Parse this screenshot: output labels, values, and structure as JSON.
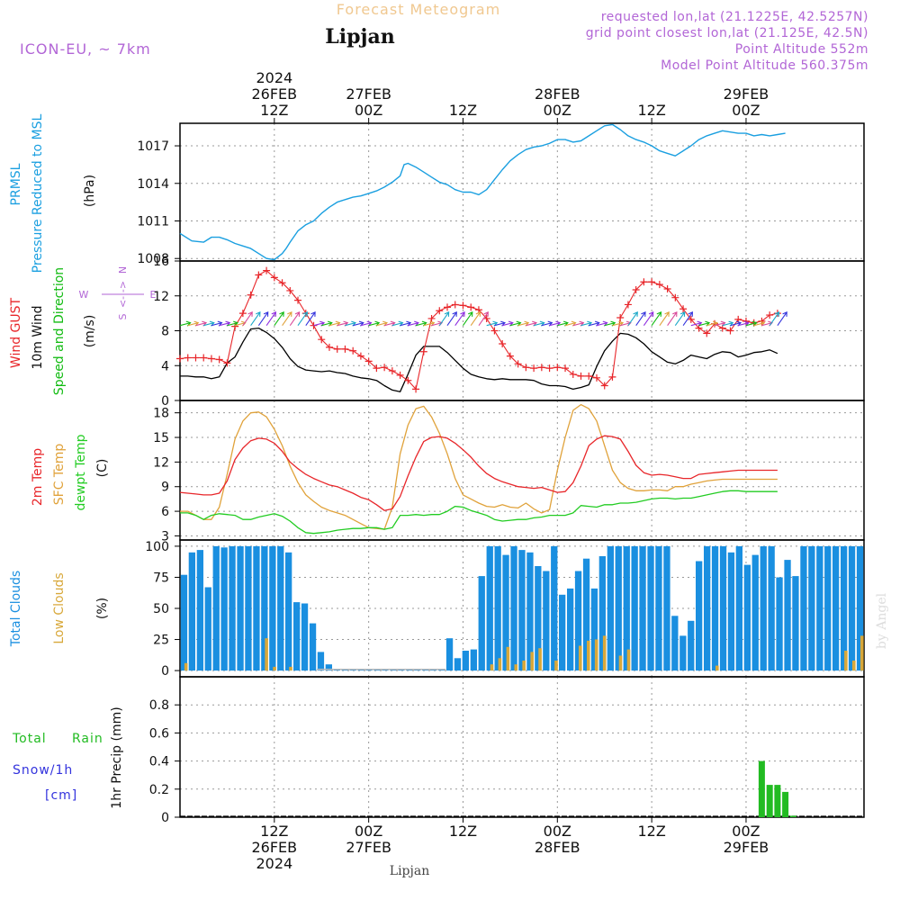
{
  "header": {
    "subtitle": "Forecast Meteogram",
    "location": "Lipjan",
    "model": "ICON-EU, ~ 7km",
    "requested": "requested lon,lat (21.1225E, 42.5257N)",
    "grid_point": "grid point closest lon,lat (21.125E, 42.5N)",
    "point_altitude": "Point Altitude 552m",
    "model_altitude": "Model Point Altitude 560.375m"
  },
  "footer": {
    "location": "Lipjan",
    "watermark": "by Angel"
  },
  "colors": {
    "pressure": "#1a9fe0",
    "gust": "#e8262a",
    "wind10m": "#000000",
    "winddir": "#11bb11",
    "t2m": "#e8262a",
    "tsfc": "#e0a23a",
    "dewpt": "#22cc22",
    "total_clouds": "#1a8fe0",
    "low_clouds": "#d8a83a",
    "rain": "#22bb22",
    "snow": "#3333dd",
    "accent": "#b266d6",
    "subtitle": "#f0c890"
  },
  "axis_labels": {
    "pressure": [
      "PRMSL",
      "Pressure Reduced to MSL",
      "(hPa)"
    ],
    "wind": [
      "Wind GUST",
      "10m Wind",
      "Speed and Direction",
      "(m/s)"
    ],
    "wind_compass": [
      "N",
      "<-|->",
      "S",
      "W",
      "E"
    ],
    "temp": [
      "2m Temp",
      "SFC Temp",
      "dewpt Temp",
      "(C)"
    ],
    "clouds": [
      "Total Clouds",
      "Low Clouds",
      "(%)"
    ],
    "precip": [
      "Total",
      "Rain",
      "Snow/1h",
      "[cm]",
      "1hr Precip (mm)"
    ]
  },
  "chart_data": {
    "type": "meteogram",
    "time_axis": {
      "hours": [
        0,
        87
      ],
      "top_labels": [
        {
          "hour": 12,
          "time": "12Z",
          "date": "26FEB",
          "year": "2024"
        },
        {
          "hour": 24,
          "time": "00Z",
          "date": "27FEB",
          "year": ""
        },
        {
          "hour": 36,
          "time": "12Z",
          "date": "",
          "year": ""
        },
        {
          "hour": 48,
          "time": "00Z",
          "date": "28FEB",
          "year": ""
        },
        {
          "hour": 60,
          "time": "12Z",
          "date": "",
          "year": ""
        },
        {
          "hour": 72,
          "time": "00Z",
          "date": "29FEB",
          "year": ""
        }
      ],
      "bottom_labels": [
        {
          "hour": 12,
          "time": "12Z",
          "date": "26FEB",
          "year": "2024"
        },
        {
          "hour": 24,
          "time": "00Z",
          "date": "27FEB",
          "year": ""
        },
        {
          "hour": 36,
          "time": "12Z",
          "date": "",
          "year": ""
        },
        {
          "hour": 48,
          "time": "00Z",
          "date": "28FEB",
          "year": ""
        },
        {
          "hour": 60,
          "time": "12Z",
          "date": "",
          "year": ""
        },
        {
          "hour": 72,
          "time": "00Z",
          "date": "29FEB",
          "year": ""
        }
      ]
    },
    "pressure": {
      "name": "PRMSL",
      "unit": "hPa",
      "ylim": [
        1007.8,
        1018.8
      ],
      "ticks": [
        1008,
        1011,
        1014,
        1017
      ],
      "x": [
        0,
        1.5,
        3,
        4,
        5,
        6,
        7,
        8,
        9,
        10,
        11,
        12,
        13,
        13.5,
        14,
        15,
        16,
        17,
        18,
        19,
        20,
        21,
        22,
        23,
        24,
        25,
        26,
        27,
        28,
        28.5,
        29,
        30,
        31,
        32,
        33,
        34,
        35,
        36,
        37,
        38,
        39,
        40,
        41,
        42,
        43,
        44,
        45,
        46,
        47,
        48,
        49,
        50,
        51,
        52,
        53,
        54,
        55,
        56,
        57,
        58,
        59,
        60,
        61,
        62,
        63,
        64,
        65,
        66,
        67,
        68,
        69,
        70,
        71,
        72,
        73,
        74,
        75,
        76,
        77
      ],
      "values": [
        1010,
        1009.4,
        1009.3,
        1009.7,
        1009.7,
        1009.5,
        1009.2,
        1009.0,
        1008.8,
        1008.4,
        1008.0,
        1007.9,
        1008.4,
        1008.8,
        1009.3,
        1010.2,
        1010.7,
        1011.0,
        1011.6,
        1012.1,
        1012.5,
        1012.7,
        1012.9,
        1013.0,
        1013.2,
        1013.4,
        1013.7,
        1014.1,
        1014.6,
        1015.5,
        1015.6,
        1015.3,
        1014.9,
        1014.5,
        1014.1,
        1013.9,
        1013.5,
        1013.3,
        1013.3,
        1013.1,
        1013.5,
        1014.3,
        1015.1,
        1015.8,
        1016.3,
        1016.7,
        1016.9,
        1017.0,
        1017.2,
        1017.5,
        1017.5,
        1017.3,
        1017.4,
        1017.8,
        1018.2,
        1018.6,
        1018.7,
        1018.3,
        1017.8,
        1017.5,
        1017.3,
        1017.0,
        1016.6,
        1016.4,
        1016.2,
        1016.6,
        1017.0,
        1017.5,
        1017.8,
        1018.0,
        1018.2,
        1018.1,
        1018.0,
        1018.0,
        1017.8,
        1017.9,
        1017.8,
        1017.9,
        1018.0
      ]
    },
    "wind": {
      "unit": "m/s",
      "ylim": [
        0,
        16
      ],
      "ticks": [
        0,
        4,
        8,
        12,
        16
      ],
      "x": [
        0,
        1,
        2,
        3,
        4,
        5,
        6,
        7,
        8,
        9,
        10,
        11,
        12,
        13,
        14,
        15,
        16,
        17,
        18,
        19,
        20,
        21,
        22,
        23,
        24,
        25,
        26,
        27,
        28,
        29,
        30,
        31,
        32,
        33,
        34,
        35,
        36,
        37,
        38,
        39,
        40,
        41,
        42,
        43,
        44,
        45,
        46,
        47,
        48,
        49,
        50,
        51,
        52,
        53,
        54,
        55,
        56,
        57,
        58,
        59,
        60,
        61,
        62,
        63,
        64,
        65,
        66,
        67,
        68,
        69,
        70,
        71,
        72,
        73,
        74,
        75,
        76
      ],
      "gust": [
        4.8,
        4.9,
        4.9,
        4.9,
        4.8,
        4.7,
        4.3,
        8.5,
        10.0,
        12.1,
        14.4,
        14.9,
        14.1,
        13.5,
        12.6,
        11.5,
        10.0,
        8.6,
        7.0,
        6.1,
        5.9,
        5.9,
        5.7,
        5.1,
        4.5,
        3.7,
        3.8,
        3.4,
        2.9,
        2.3,
        1.3,
        5.6,
        9.4,
        10.3,
        10.7,
        11.0,
        10.9,
        10.7,
        10.4,
        9.4,
        8.0,
        6.5,
        5.1,
        4.2,
        3.8,
        3.7,
        3.8,
        3.7,
        3.8,
        3.7,
        3.0,
        2.8,
        2.8,
        2.6,
        1.7,
        2.7,
        9.5,
        11.0,
        12.7,
        13.6,
        13.6,
        13.3,
        12.8,
        11.8,
        10.5,
        9.3,
        8.3,
        7.7,
        8.8,
        8.3,
        8.0,
        9.3,
        9.1,
        8.9,
        9.1,
        9.8,
        10.0
      ],
      "wind10m": [
        2.8,
        2.8,
        2.7,
        2.7,
        2.5,
        2.7,
        4.3,
        5.0,
        6.7,
        8.2,
        8.3,
        7.8,
        7.1,
        6.1,
        4.8,
        3.9,
        3.5,
        3.4,
        3.3,
        3.4,
        3.2,
        3.1,
        2.8,
        2.6,
        2.5,
        2.3,
        1.7,
        1.2,
        1.0,
        3.0,
        5.2,
        6.2,
        6.2,
        6.2,
        5.5,
        4.6,
        3.7,
        3.0,
        2.7,
        2.5,
        2.4,
        2.5,
        2.4,
        2.4,
        2.4,
        2.3,
        1.9,
        1.7,
        1.7,
        1.6,
        1.3,
        1.5,
        1.8,
        3.9,
        5.7,
        6.8,
        7.7,
        7.6,
        7.2,
        6.5,
        5.6,
        5.0,
        4.4,
        4.2,
        4.6,
        5.2,
        5.0,
        4.8,
        5.3,
        5.6,
        5.5,
        5.0,
        5.2,
        5.5,
        5.6,
        5.8,
        5.4
      ]
    },
    "temperature": {
      "unit": "C",
      "ylim": [
        2.5,
        19.5
      ],
      "ticks": [
        3,
        6,
        9,
        12,
        15,
        18
      ],
      "x": [
        0,
        1,
        2,
        3,
        4,
        5,
        6,
        7,
        8,
        9,
        10,
        11,
        12,
        13,
        14,
        15,
        16,
        17,
        18,
        19,
        20,
        21,
        22,
        23,
        24,
        25,
        26,
        27,
        28,
        29,
        30,
        31,
        32,
        33,
        34,
        35,
        36,
        37,
        38,
        39,
        40,
        41,
        42,
        43,
        44,
        45,
        46,
        47,
        48,
        49,
        50,
        51,
        52,
        53,
        54,
        55,
        56,
        57,
        58,
        59,
        60,
        61,
        62,
        63,
        64,
        65,
        66,
        67,
        68,
        69,
        70,
        71,
        72,
        73,
        74,
        75,
        76
      ],
      "t2m": [
        8.3,
        8.2,
        8.1,
        8.0,
        8.0,
        8.2,
        9.7,
        12.3,
        13.7,
        14.6,
        14.9,
        14.8,
        14.3,
        13.3,
        12.0,
        11.2,
        10.5,
        10.0,
        9.6,
        9.2,
        9.0,
        8.6,
        8.2,
        7.7,
        7.4,
        6.8,
        6.1,
        6.3,
        7.8,
        10.3,
        12.6,
        14.5,
        15.0,
        15.1,
        14.9,
        14.3,
        13.5,
        12.6,
        11.5,
        10.6,
        10.0,
        9.6,
        9.3,
        9.0,
        8.9,
        8.8,
        8.9,
        8.6,
        8.3,
        8.4,
        9.5,
        11.5,
        14.0,
        14.8,
        15.2,
        15.1,
        14.8,
        13.3,
        11.6,
        10.7,
        10.4,
        10.5,
        10.4,
        10.2,
        10.0,
        10.0,
        10.5,
        10.6,
        10.7,
        10.8,
        10.9,
        11.0,
        11.0,
        11.0,
        11.0,
        11.0,
        11.0
      ],
      "tsfc": [
        6.0,
        6.0,
        5.5,
        5.0,
        5.0,
        6.5,
        10.5,
        14.8,
        17.0,
        18.0,
        18.1,
        17.5,
        16.0,
        14.0,
        11.5,
        9.5,
        8.0,
        7.2,
        6.5,
        6.1,
        5.8,
        5.5,
        5.0,
        4.5,
        4.0,
        3.9,
        3.8,
        6.5,
        13.0,
        16.5,
        18.5,
        18.8,
        17.5,
        15.5,
        13.0,
        10.0,
        8.0,
        7.5,
        7.0,
        6.6,
        6.5,
        6.8,
        6.5,
        6.4,
        7.0,
        6.3,
        5.8,
        6.2,
        11.0,
        15.0,
        18.3,
        19.0,
        18.5,
        17.0,
        14.0,
        11.0,
        9.5,
        8.8,
        8.5,
        8.5,
        8.6,
        8.6,
        8.5,
        9.0,
        9.0,
        9.3,
        9.5,
        9.7,
        9.8,
        9.9,
        9.9,
        9.9,
        9.9,
        9.9,
        9.9,
        9.9,
        9.9
      ],
      "dewpt": [
        5.8,
        5.8,
        5.5,
        5.0,
        5.5,
        5.7,
        5.6,
        5.5,
        5.0,
        5.0,
        5.3,
        5.5,
        5.7,
        5.4,
        4.8,
        4.0,
        3.4,
        3.3,
        3.4,
        3.5,
        3.7,
        3.8,
        3.9,
        3.9,
        4.0,
        4.0,
        3.8,
        4.0,
        5.5,
        5.5,
        5.6,
        5.5,
        5.6,
        5.6,
        6.0,
        6.6,
        6.5,
        6.1,
        5.8,
        5.5,
        5.0,
        4.8,
        4.9,
        5.0,
        5.0,
        5.2,
        5.3,
        5.5,
        5.5,
        5.5,
        5.8,
        6.7,
        6.6,
        6.5,
        6.8,
        6.8,
        7.0,
        7.0,
        7.1,
        7.3,
        7.5,
        7.6,
        7.6,
        7.5,
        7.6,
        7.6,
        7.8,
        8.0,
        8.2,
        8.4,
        8.5,
        8.5,
        8.4,
        8.4,
        8.4,
        8.4,
        8.4
      ]
    },
    "clouds": {
      "unit": "%",
      "ylim": [
        -5,
        105
      ],
      "ticks": [
        0,
        25,
        50,
        75,
        100
      ],
      "total": [
        77,
        95,
        97,
        67,
        100,
        99,
        100,
        100,
        100,
        100,
        100,
        100,
        100,
        95,
        55,
        54,
        38,
        15,
        5,
        1,
        1,
        1,
        1,
        1,
        1,
        1,
        1,
        1,
        1,
        1,
        1,
        1,
        1,
        26,
        10,
        16,
        17,
        76,
        100,
        100,
        93,
        100,
        97,
        95,
        84,
        80,
        100,
        61,
        66,
        80,
        90,
        66,
        92,
        100,
        100,
        100,
        100,
        100,
        100,
        100,
        100,
        44,
        28,
        40,
        88,
        100,
        100,
        100,
        95,
        100,
        85,
        93,
        100,
        100,
        75,
        89,
        76,
        100,
        100,
        100,
        100,
        100,
        100,
        100,
        100
      ],
      "low": [
        6,
        0,
        0,
        0,
        0,
        0,
        0,
        0,
        0,
        0,
        26,
        3,
        0,
        3,
        0,
        0,
        0,
        0,
        0,
        0,
        0,
        0,
        0,
        0,
        0,
        0,
        0,
        0,
        0,
        0,
        0,
        0,
        0,
        0,
        0,
        0,
        0,
        0,
        5,
        10,
        19,
        5,
        8,
        15,
        18,
        0,
        8,
        0,
        0,
        20,
        24,
        25,
        28,
        0,
        12,
        17,
        0,
        0,
        0,
        0,
        0,
        0,
        0,
        0,
        0,
        0,
        4,
        0,
        0,
        0,
        0,
        0,
        0,
        0,
        0,
        0,
        0,
        0,
        0,
        0,
        0,
        0,
        16,
        8,
        28
      ]
    },
    "precip": {
      "unit": "mm",
      "ylim": [
        0,
        1.0
      ],
      "ticks": [
        0,
        0.2,
        0.4,
        0.6,
        0.8
      ],
      "rain": [
        {
          "hour": 74,
          "value": 0.4
        },
        {
          "hour": 75,
          "value": 0.23
        },
        {
          "hour": 76,
          "value": 0.23
        },
        {
          "hour": 77,
          "value": 0.18
        },
        {
          "hour": 78,
          "value": 0.01
        }
      ],
      "snow": []
    }
  }
}
